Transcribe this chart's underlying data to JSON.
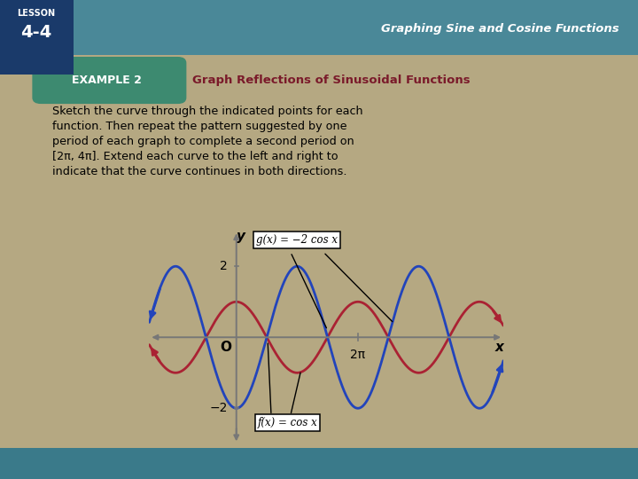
{
  "bg_outer": "#b5a882",
  "bg_slide": "#ffffff",
  "header_bar_color": "#4a8a96",
  "example_box_color": "#3d8a70",
  "example_label": "EXAMPLE 2",
  "example_label_color": "#ffffff",
  "title_text": "Graph Reflections of Sinusoidal Functions",
  "title_color": "#7a1a2a",
  "lesson_bg": "#1a3a6a",
  "header_right_text": "Graphing Sine and Cosine Functions",
  "body_text": "Sketch the curve through the indicated points for each\nfunction. Then repeat the pattern suggested by one\nperiod of each graph to complete a second period on\n[2π, 4π]. Extend each curve to the left and right to\nindicate that the curve continues in both directions.",
  "fx_label": "f(x) = cos x",
  "gx_label": "g(x) = −2 cos x",
  "cos_color": "#aa2233",
  "neg2cos_color": "#2244bb",
  "axis_color": "#777777",
  "xlim": [
    -4.5,
    13.8
  ],
  "ylim": [
    -3.0,
    3.0
  ],
  "x_label": "x",
  "y_label": "y",
  "o_label": "O",
  "two_pi_label": "2π",
  "neg2_label": "−2",
  "pos2_label": "2"
}
